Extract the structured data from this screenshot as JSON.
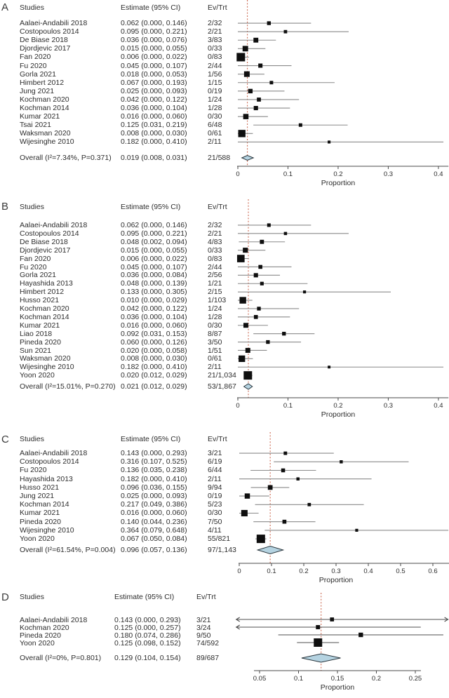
{
  "figure_title": "Forest plots of pooled proportions",
  "colors": {
    "background": "#ffffff",
    "text": "#2d2d2d",
    "refline": "#cc6a52",
    "marker": "#0f0f0f",
    "ci_line": "#8a8a8a",
    "ci_line_dark": "#4f4f4f",
    "axis": "#4a4a4a",
    "diamond_fill": "#b5d3e1",
    "diamond_stroke": "#29353c"
  },
  "chart_data": [
    {
      "type": "forest",
      "panel_label": "A",
      "columns": {
        "studies": "Studies",
        "estimate": "Estimate (95% CI)",
        "evtrt": "Ev/Trt"
      },
      "xlabel": "Proportion",
      "axis": {
        "ticks": [
          0,
          0.1,
          0.2,
          0.3,
          0.4
        ],
        "tick_labels": [
          "0",
          "0.1",
          "0.2",
          "0.3",
          "0.4"
        ],
        "range": [
          0,
          0.42
        ]
      },
      "refline": 0.019,
      "legend": "grid off",
      "studies": [
        {
          "name": "Aalaei-Andabili 2018",
          "estimate_text": "0.062 (0.000, 0.146)",
          "est": 0.062,
          "lo": 0.0,
          "hi": 0.146,
          "evtrt": "2/32"
        },
        {
          "name": "Costopoulos 2014",
          "estimate_text": "0.095 (0.000, 0.221)",
          "est": 0.095,
          "lo": 0.0,
          "hi": 0.221,
          "evtrt": "2/21"
        },
        {
          "name": "De Biase 2018",
          "estimate_text": "0.036 (0.000, 0.076)",
          "est": 0.036,
          "lo": 0.0,
          "hi": 0.076,
          "evtrt": "3/83"
        },
        {
          "name": "Djordjevic 2017",
          "estimate_text": "0.015 (0.000, 0.055)",
          "est": 0.015,
          "lo": 0.0,
          "hi": 0.055,
          "evtrt": "0/33"
        },
        {
          "name": "Fan 2020",
          "estimate_text": "0.006 (0.000, 0.022)",
          "est": 0.006,
          "lo": 0.0,
          "hi": 0.022,
          "evtrt": "0/83"
        },
        {
          "name": "Fu 2020",
          "estimate_text": "0.045 (0.000, 0.107)",
          "est": 0.045,
          "lo": 0.0,
          "hi": 0.107,
          "evtrt": "2/44"
        },
        {
          "name": "Gorla 2021",
          "estimate_text": "0.018 (0.000, 0.053)",
          "est": 0.018,
          "lo": 0.0,
          "hi": 0.053,
          "evtrt": "1/56"
        },
        {
          "name": "Himbert 2012",
          "estimate_text": "0.067 (0.000, 0.193)",
          "est": 0.067,
          "lo": 0.0,
          "hi": 0.193,
          "evtrt": "1/15"
        },
        {
          "name": "Jung 2021",
          "estimate_text": "0.025 (0.000, 0.093)",
          "est": 0.025,
          "lo": 0.0,
          "hi": 0.093,
          "evtrt": "0/19"
        },
        {
          "name": "Kochman 2020",
          "estimate_text": "0.042 (0.000, 0.122)",
          "est": 0.042,
          "lo": 0.0,
          "hi": 0.122,
          "evtrt": "1/24"
        },
        {
          "name": "Kochman 2014",
          "estimate_text": "0.036 (0.000, 0.104)",
          "est": 0.036,
          "lo": 0.0,
          "hi": 0.104,
          "evtrt": "1/28"
        },
        {
          "name": "Kumar 2021",
          "estimate_text": "0.016 (0.000, 0.060)",
          "est": 0.016,
          "lo": 0.0,
          "hi": 0.06,
          "evtrt": "0/30"
        },
        {
          "name": "Tsai 2021",
          "estimate_text": "0.125 (0.031, 0.219)",
          "est": 0.125,
          "lo": 0.031,
          "hi": 0.219,
          "evtrt": "6/48"
        },
        {
          "name": "Waksman 2020",
          "estimate_text": "0.008 (0.000, 0.030)",
          "est": 0.008,
          "lo": 0.0,
          "hi": 0.03,
          "evtrt": "0/61"
        },
        {
          "name": "Wijesinghe 2010",
          "estimate_text": "0.182 (0.000, 0.410)",
          "est": 0.182,
          "lo": 0.0,
          "hi": 0.41,
          "evtrt": "2/11"
        }
      ],
      "overall": {
        "label": "Overall (I²=7.34%, P=0.371)",
        "estimate_text": "0.019 (0.008, 0.031)",
        "est": 0.019,
        "lo": 0.008,
        "hi": 0.031,
        "evtrt": "21/588"
      }
    },
    {
      "type": "forest",
      "panel_label": "B",
      "columns": {
        "studies": "Studies",
        "estimate": "Estimate (95% CI)",
        "evtrt": "Ev/Trt"
      },
      "xlabel": "Proportion",
      "axis": {
        "ticks": [
          0,
          0.1,
          0.2,
          0.3,
          0.4
        ],
        "tick_labels": [
          "0",
          "0.1",
          "0.2",
          "0.3",
          "0.4"
        ],
        "range": [
          0,
          0.42
        ]
      },
      "refline": 0.021,
      "studies": [
        {
          "name": "Aalaei-Andabili 2018",
          "estimate_text": "0.062 (0.000, 0.146)",
          "est": 0.062,
          "lo": 0.0,
          "hi": 0.146,
          "evtrt": "2/32"
        },
        {
          "name": "Costopoulos 2014",
          "estimate_text": "0.095 (0.000, 0.221)",
          "est": 0.095,
          "lo": 0.0,
          "hi": 0.221,
          "evtrt": "2/21"
        },
        {
          "name": "De Biase 2018",
          "estimate_text": "0.048 (0.002, 0.094)",
          "est": 0.048,
          "lo": 0.002,
          "hi": 0.094,
          "evtrt": "4/83"
        },
        {
          "name": "Djordjevic 2017",
          "estimate_text": "0.015 (0.000, 0.055)",
          "est": 0.015,
          "lo": 0.0,
          "hi": 0.055,
          "evtrt": "0/33"
        },
        {
          "name": "Fan 2020",
          "estimate_text": "0.006 (0.000, 0.022)",
          "est": 0.006,
          "lo": 0.0,
          "hi": 0.022,
          "evtrt": "0/83"
        },
        {
          "name": "Fu 2020",
          "estimate_text": "0.045 (0.000, 0.107)",
          "est": 0.045,
          "lo": 0.0,
          "hi": 0.107,
          "evtrt": "2/44"
        },
        {
          "name": "Gorla 2021",
          "estimate_text": "0.036 (0.000, 0.084)",
          "est": 0.036,
          "lo": 0.0,
          "hi": 0.084,
          "evtrt": "2/56"
        },
        {
          "name": "Hayashida 2013",
          "estimate_text": "0.048 (0.000, 0.139)",
          "est": 0.048,
          "lo": 0.0,
          "hi": 0.139,
          "evtrt": "1/21"
        },
        {
          "name": "Himbert 2012",
          "estimate_text": "0.133 (0.000, 0.305)",
          "est": 0.133,
          "lo": 0.0,
          "hi": 0.305,
          "evtrt": "2/15"
        },
        {
          "name": "Husso 2021",
          "estimate_text": "0.010 (0.000, 0.029)",
          "est": 0.01,
          "lo": 0.0,
          "hi": 0.029,
          "evtrt": "1/103"
        },
        {
          "name": "Kochman 2020",
          "estimate_text": "0.042 (0.000, 0.122)",
          "est": 0.042,
          "lo": 0.0,
          "hi": 0.122,
          "evtrt": "1/24"
        },
        {
          "name": "Kochman 2014",
          "estimate_text": "0.036 (0.000, 0.104)",
          "est": 0.036,
          "lo": 0.0,
          "hi": 0.104,
          "evtrt": "1/28"
        },
        {
          "name": "Kumar 2021",
          "estimate_text": "0.016 (0.000, 0.060)",
          "est": 0.016,
          "lo": 0.0,
          "hi": 0.06,
          "evtrt": "0/30"
        },
        {
          "name": "Liao 2018",
          "estimate_text": "0.092 (0.031, 0.153)",
          "est": 0.092,
          "lo": 0.031,
          "hi": 0.153,
          "evtrt": "8/87"
        },
        {
          "name": "Pineda 2020",
          "estimate_text": "0.060 (0.000, 0.126)",
          "est": 0.06,
          "lo": 0.0,
          "hi": 0.126,
          "evtrt": "3/50"
        },
        {
          "name": "Sun 2021",
          "estimate_text": "0.020 (0.000, 0.058)",
          "est": 0.02,
          "lo": 0.0,
          "hi": 0.058,
          "evtrt": "1/51"
        },
        {
          "name": "Waksman 2020",
          "estimate_text": "0.008 (0.000, 0.030)",
          "est": 0.008,
          "lo": 0.0,
          "hi": 0.03,
          "evtrt": "0/61"
        },
        {
          "name": "Wijesinghe 2010",
          "estimate_text": "0.182 (0.000, 0.410)",
          "est": 0.182,
          "lo": 0.0,
          "hi": 0.41,
          "evtrt": "2/11"
        },
        {
          "name": "Yoon 2020",
          "estimate_text": "0.020 (0.012, 0.029)",
          "est": 0.02,
          "lo": 0.012,
          "hi": 0.029,
          "evtrt": "21/1,034"
        }
      ],
      "overall": {
        "label": "Overall (I²=15.01%, P=0.270)",
        "estimate_text": "0.021 (0.012, 0.029)",
        "est": 0.021,
        "lo": 0.012,
        "hi": 0.029,
        "evtrt": "53/1,867"
      }
    },
    {
      "type": "forest",
      "panel_label": "C",
      "columns": {
        "studies": "Studies",
        "estimate": "Estimate (95% CI)",
        "evtrt": "Ev/Trt"
      },
      "xlabel": "Proportion",
      "axis": {
        "ticks": [
          0,
          0.1,
          0.2,
          0.3,
          0.4,
          0.5,
          0.6
        ],
        "tick_labels": [
          "0",
          "0.1",
          "0.2",
          "0.3",
          "0.4",
          "0.5",
          "0.6"
        ],
        "range": [
          0,
          0.65
        ]
      },
      "refline": 0.096,
      "studies": [
        {
          "name": "Aalaei-Andabili 2018",
          "estimate_text": "0.143 (0.000, 0.293)",
          "est": 0.143,
          "lo": 0.0,
          "hi": 0.293,
          "evtrt": "3/21"
        },
        {
          "name": "Costopoulos 2014",
          "estimate_text": "0.316 (0.107, 0.525)",
          "est": 0.316,
          "lo": 0.107,
          "hi": 0.525,
          "evtrt": "6/19"
        },
        {
          "name": "Fu 2020",
          "estimate_text": "0.136 (0.035, 0.238)",
          "est": 0.136,
          "lo": 0.035,
          "hi": 0.238,
          "evtrt": "6/44"
        },
        {
          "name": "Hayashida 2013",
          "estimate_text": "0.182 (0.000, 0.410)",
          "est": 0.182,
          "lo": 0.0,
          "hi": 0.41,
          "evtrt": "2/11"
        },
        {
          "name": "Husso 2021",
          "estimate_text": "0.096 (0.036, 0.155)",
          "est": 0.096,
          "lo": 0.036,
          "hi": 0.155,
          "evtrt": "9/94"
        },
        {
          "name": "Jung 2021",
          "estimate_text": "0.025 (0.000, 0.093)",
          "est": 0.025,
          "lo": 0.0,
          "hi": 0.093,
          "evtrt": "0/19"
        },
        {
          "name": "Kochman 2014",
          "estimate_text": "0.217 (0.049, 0.386)",
          "est": 0.217,
          "lo": 0.049,
          "hi": 0.386,
          "evtrt": "5/23"
        },
        {
          "name": "Kumar 2021",
          "estimate_text": "0.016 (0.000, 0.060)",
          "est": 0.016,
          "lo": 0.0,
          "hi": 0.06,
          "evtrt": "0/30"
        },
        {
          "name": "Pineda 2020",
          "estimate_text": "0.140 (0.044, 0.236)",
          "est": 0.14,
          "lo": 0.044,
          "hi": 0.236,
          "evtrt": "7/50"
        },
        {
          "name": "Wijesinghe 2010",
          "estimate_text": "0.364 (0.079, 0.648)",
          "est": 0.364,
          "lo": 0.079,
          "hi": 0.648,
          "evtrt": "4/11"
        },
        {
          "name": "Yoon 2020",
          "estimate_text": "0.067 (0.050, 0.084)",
          "est": 0.067,
          "lo": 0.05,
          "hi": 0.084,
          "evtrt": "55/821"
        }
      ],
      "overall": {
        "label": "Overall (I²=61.54%, P=0.004)",
        "estimate_text": "0.096 (0.057, 0.136)",
        "est": 0.096,
        "lo": 0.057,
        "hi": 0.136,
        "evtrt": "97/1,143"
      }
    },
    {
      "type": "forest",
      "panel_label": "D",
      "columns": {
        "studies": "Studies",
        "estimate": "Estimate (95% CI)",
        "evtrt": "Ev/Trt"
      },
      "xlabel": "Proportion",
      "axis": {
        "ticks": [
          0.05,
          0.1,
          0.15,
          0.2,
          0.25
        ],
        "tick_labels": [
          "0.05",
          "0.1",
          "0.15",
          "0.2",
          "0.25"
        ],
        "range": [
          0.02,
          0.292
        ]
      },
      "refline": 0.129,
      "studies": [
        {
          "name": "Aalaei-Andabili 2018",
          "estimate_text": "0.143 (0.000, 0.293)",
          "est": 0.143,
          "lo": 0.0,
          "hi": 0.293,
          "evtrt": "3/21"
        },
        {
          "name": "Kochman 2020",
          "estimate_text": "0.125 (0.000, 0.257)",
          "est": 0.125,
          "lo": 0.0,
          "hi": 0.257,
          "evtrt": "3/24"
        },
        {
          "name": "Pineda 2020",
          "estimate_text": "0.180 (0.074, 0.286)",
          "est": 0.18,
          "lo": 0.074,
          "hi": 0.286,
          "evtrt": "9/50"
        },
        {
          "name": "Yoon 2020",
          "estimate_text": "0.125 (0.098, 0.152)",
          "est": 0.125,
          "lo": 0.098,
          "hi": 0.152,
          "evtrt": "74/592"
        }
      ],
      "overall": {
        "label": "Overall (I²=0%, P=0.801)",
        "estimate_text": "0.129 (0.104, 0.154)",
        "est": 0.129,
        "lo": 0.104,
        "hi": 0.154,
        "evtrt": "89/687"
      }
    }
  ]
}
